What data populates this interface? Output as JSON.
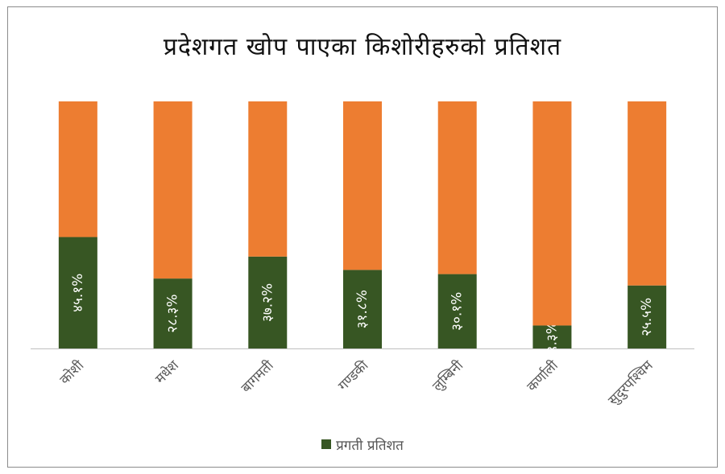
{
  "chart_data": {
    "type": "bar",
    "stacked_to_100": true,
    "title": "प्रदेशगत खोप पाएका किशोरीहरुको प्रतिशत",
    "categories": [
      "कोशी",
      "मधेश",
      "बागमती",
      "गण्डकी",
      "लुम्बिनी",
      "कर्णाली",
      "सुदुरपश्चिम"
    ],
    "series": [
      {
        "name": "प्रगती प्रतिशत",
        "color": "#375623",
        "values": [
          45.1,
          28.3,
          37.2,
          31.8,
          30.1,
          9.3,
          25.5
        ],
        "data_labels": [
          "४५.१%",
          "२८.३%",
          "३७.२%",
          "३१.८%",
          "३०.१%",
          "९.३%",
          "२५.५%"
        ]
      },
      {
        "name": "",
        "color": "#ED7D31",
        "values": [
          54.9,
          71.7,
          62.8,
          68.2,
          69.9,
          90.7,
          74.5
        ]
      }
    ],
    "ylim": [
      0,
      100
    ],
    "xlabel": "",
    "ylabel": "",
    "grid": false,
    "legend_position": "bottom",
    "legend": [
      "प्रगती प्रतिशत"
    ]
  }
}
